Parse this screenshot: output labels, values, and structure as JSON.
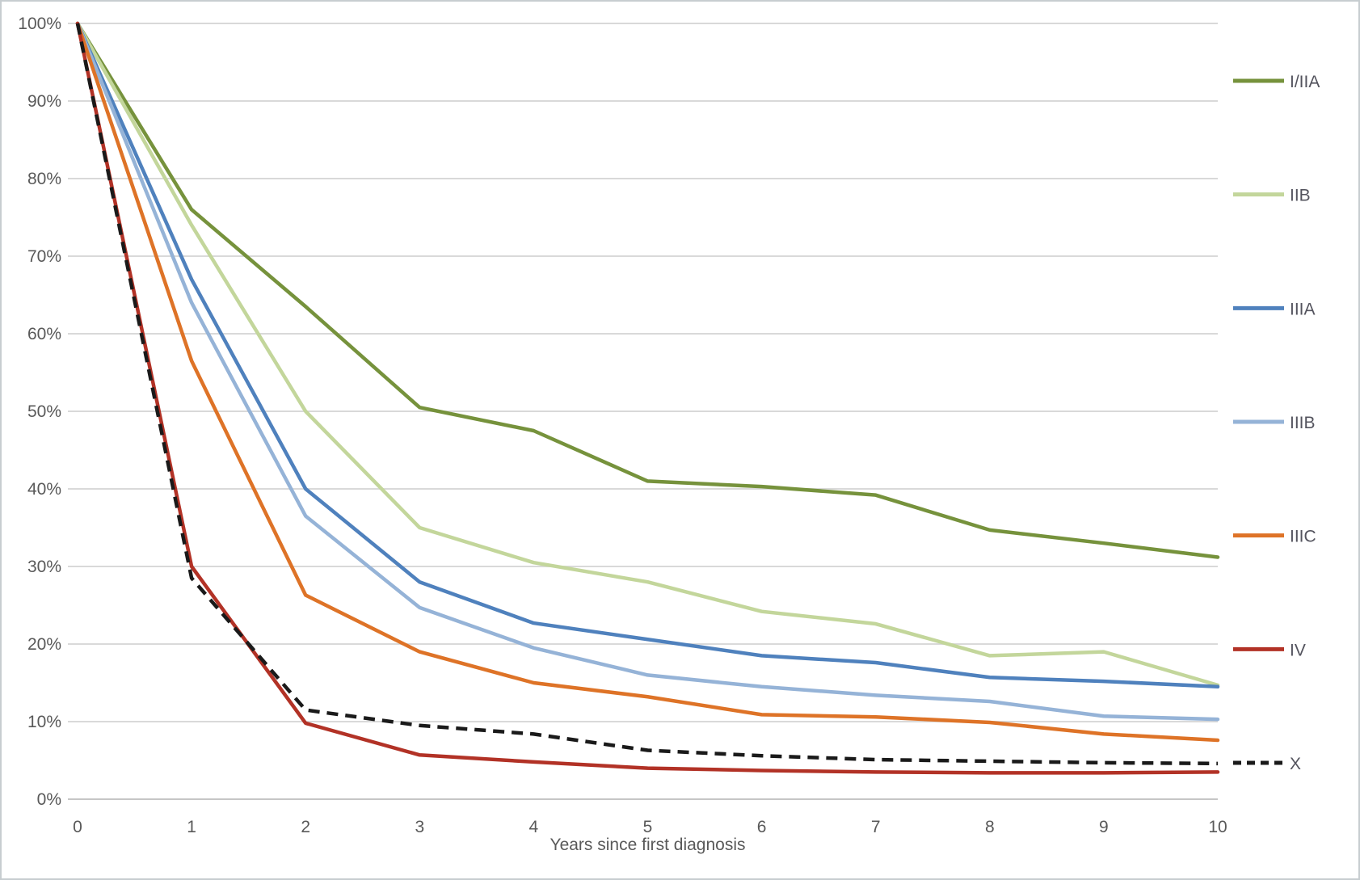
{
  "chart": {
    "x_axis_title": "Years since first diagnosis"
  },
  "chart_data": {
    "type": "line",
    "title": "",
    "xlabel": "Years since first diagnosis",
    "ylabel": "",
    "x": [
      0,
      1,
      2,
      3,
      4,
      5,
      6,
      7,
      8,
      9,
      10
    ],
    "xlim": [
      0,
      10
    ],
    "ylim": [
      0,
      100
    ],
    "x_tick_labels": [
      "0",
      "1",
      "2",
      "3",
      "4",
      "5",
      "6",
      "7",
      "8",
      "9",
      "10"
    ],
    "y_tick_step": 10,
    "y_tick_suffix": "%",
    "grid": "horizontal",
    "gridline_color": "#d9d9d9",
    "axis_line_color": "#c6c6c6",
    "axis_text_color": "#595959",
    "legend_position": "right",
    "series": [
      {
        "name": "I/IIA",
        "color": "#76923c",
        "style": "solid",
        "values": [
          100,
          76,
          63.5,
          50.5,
          47.5,
          41,
          40.3,
          39.2,
          34.7,
          33,
          31.2
        ]
      },
      {
        "name": "IIB",
        "color": "#c3d69b",
        "style": "solid",
        "values": [
          100,
          74,
          50,
          35,
          30.5,
          28,
          24.2,
          22.6,
          18.5,
          19,
          14.7
        ]
      },
      {
        "name": "IIIA",
        "color": "#4f81bd",
        "style": "solid",
        "values": [
          100,
          67,
          40,
          28,
          22.7,
          20.6,
          18.5,
          17.6,
          15.7,
          15.2,
          14.5
        ]
      },
      {
        "name": "IIIB",
        "color": "#95b3d7",
        "style": "solid",
        "values": [
          100,
          64,
          36.5,
          24.7,
          19.5,
          16,
          14.5,
          13.4,
          12.6,
          10.7,
          10.3
        ]
      },
      {
        "name": "IIIC",
        "color": "#de7327",
        "style": "solid",
        "values": [
          100,
          56.5,
          26.3,
          19,
          15,
          13.2,
          10.9,
          10.6,
          9.9,
          8.4,
          7.6
        ]
      },
      {
        "name": "IV",
        "color": "#b23226",
        "style": "solid",
        "values": [
          100,
          30,
          9.8,
          5.7,
          4.8,
          4,
          3.7,
          3.5,
          3.4,
          3.4,
          3.5
        ]
      },
      {
        "name": "X",
        "color": "#1a1a1a",
        "style": "dashed",
        "values": [
          100,
          28.5,
          11.5,
          9.5,
          8.4,
          6.3,
          5.6,
          5.1,
          4.9,
          4.7,
          4.6
        ]
      }
    ]
  }
}
